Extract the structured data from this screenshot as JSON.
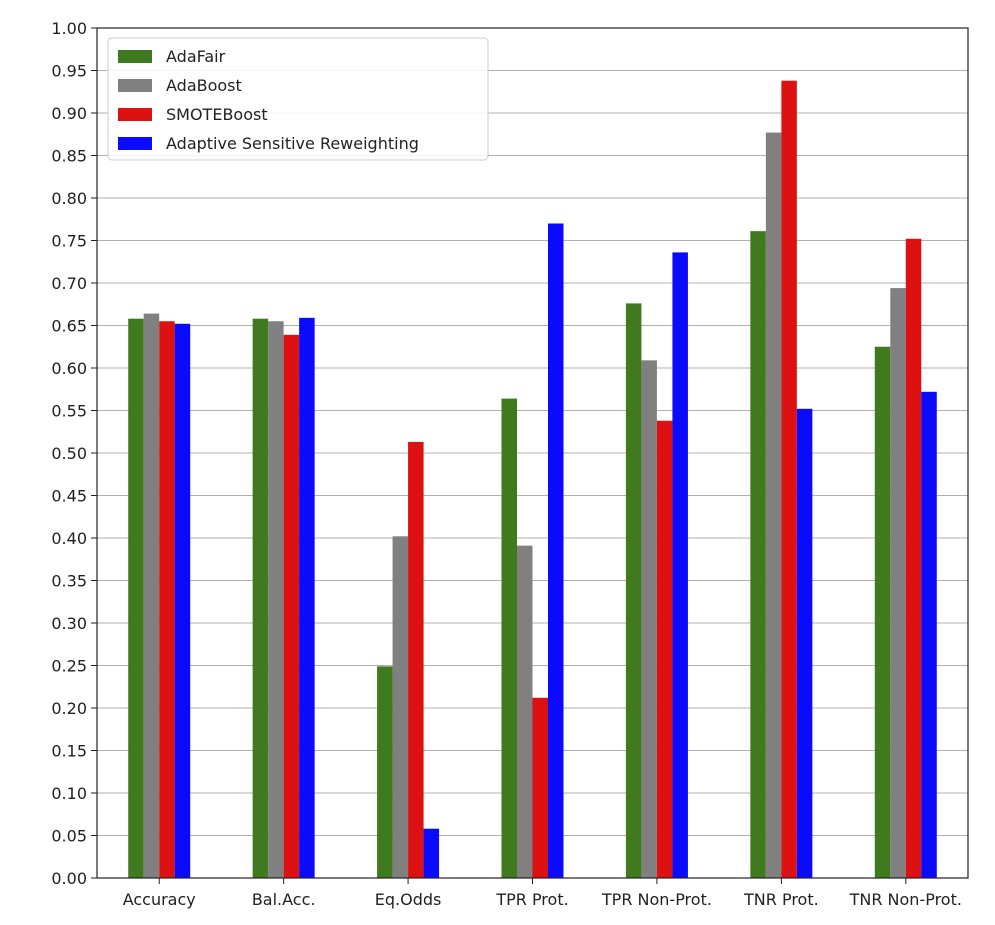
{
  "chart_data": {
    "type": "bar",
    "title": "",
    "xlabel": "",
    "ylabel": "",
    "ylim": [
      0,
      1.0
    ],
    "yticks": [
      "0.00",
      "0.05",
      "0.10",
      "0.15",
      "0.20",
      "0.25",
      "0.30",
      "0.35",
      "0.40",
      "0.45",
      "0.50",
      "0.55",
      "0.60",
      "0.65",
      "0.70",
      "0.75",
      "0.80",
      "0.85",
      "0.90",
      "0.95",
      "1.00"
    ],
    "grid": true,
    "legend_position": "top-left",
    "categories": [
      "Accuracy",
      "Bal.Acc.",
      "Eq.Odds",
      "TPR Prot.",
      "TPR Non-Prot.",
      "TNR Prot.",
      "TNR Non-Prot."
    ],
    "series": [
      {
        "name": "AdaFair",
        "color": "#3f7a1e",
        "values": [
          0.658,
          0.658,
          0.249,
          0.564,
          0.676,
          0.761,
          0.625
        ]
      },
      {
        "name": "AdaBoost",
        "color": "#808080",
        "values": [
          0.664,
          0.655,
          0.402,
          0.391,
          0.609,
          0.877,
          0.694
        ]
      },
      {
        "name": "SMOTEBoost",
        "color": "#dd1111",
        "values": [
          0.655,
          0.639,
          0.513,
          0.212,
          0.538,
          0.938,
          0.752
        ]
      },
      {
        "name": "Adaptive Sensitive Reweighting",
        "color": "#0a0aff",
        "values": [
          0.652,
          0.659,
          0.058,
          0.77,
          0.736,
          0.552,
          0.572
        ]
      }
    ]
  }
}
